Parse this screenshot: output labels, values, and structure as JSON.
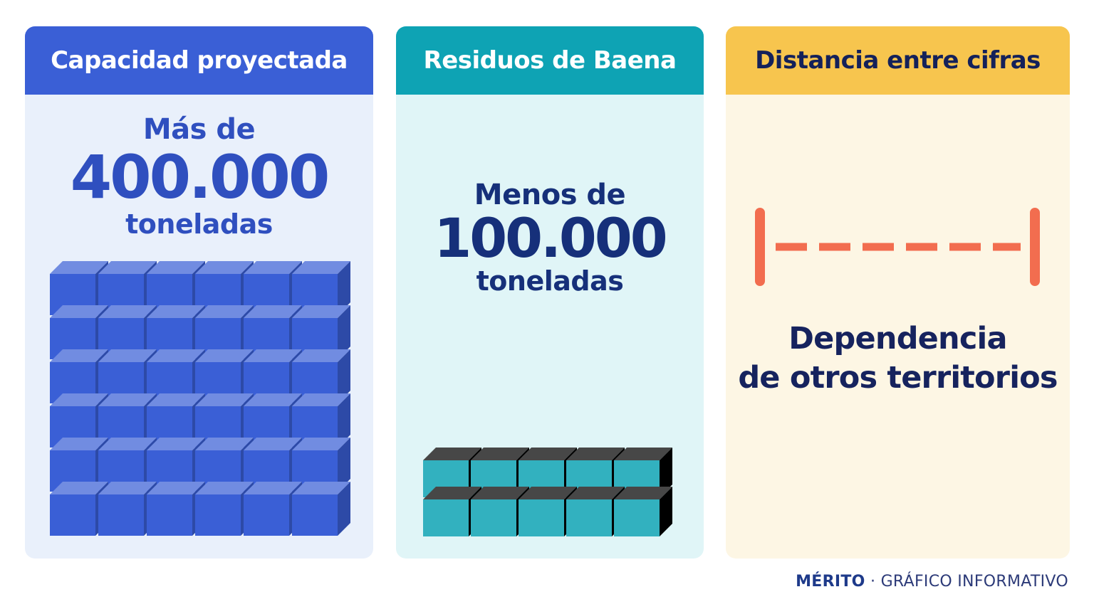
{
  "panels": [
    {
      "header": "Capacidad proyectada",
      "prefix": "Más de",
      "number": "400.000",
      "unit": "toneladas",
      "accent_color": "#3a5fd6",
      "cube_grid": {
        "columns": 6,
        "rows": 6
      }
    },
    {
      "header": "Residuos de Baena",
      "prefix": "Menos de",
      "number": "100.000",
      "unit": "toneladas",
      "accent_color": "#0ea3b4",
      "cube_grid": {
        "columns": 5,
        "rows": 2
      }
    },
    {
      "header": "Distancia entre cifras",
      "label_line1": "Dependencia",
      "label_line2": "de otros territorios",
      "accent_color": "#f7c54e",
      "gap_color": "#f26d4f"
    }
  ],
  "footer": {
    "brand": "MÉRITO",
    "separator": "·",
    "caption": "GRÁFICO INFORMATIVO"
  }
}
